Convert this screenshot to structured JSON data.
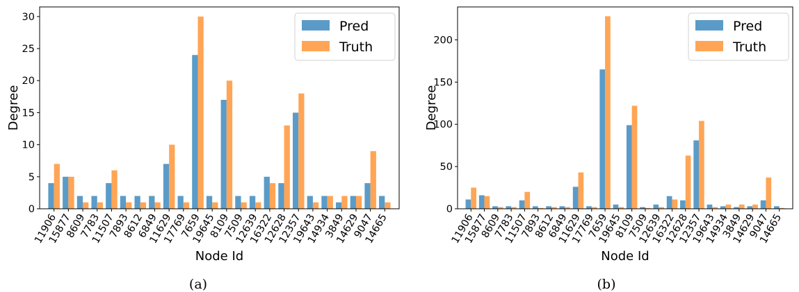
{
  "chart_data": [
    {
      "type": "bar",
      "caption": "(a)",
      "xlabel": "Node Id",
      "ylabel": "Degree",
      "ylim": [
        0,
        31.5
      ],
      "yticks": [
        0,
        5,
        10,
        15,
        20,
        25,
        30
      ],
      "grid": false,
      "legend_position": "top-right",
      "categories": [
        "11906",
        "15877",
        "8609",
        "7783",
        "11507",
        "7893",
        "8612",
        "6849",
        "11629",
        "17769",
        "7659",
        "19645",
        "8109",
        "7509",
        "12639",
        "16322",
        "12628",
        "12357",
        "19643",
        "14934",
        "3849",
        "14629",
        "9047",
        "14665"
      ],
      "series": [
        {
          "name": "Pred",
          "color": "#5b9bc8",
          "values": [
            4,
            5,
            2,
            2,
            4,
            2,
            2,
            2,
            7,
            2,
            24,
            2,
            17,
            2,
            2,
            5,
            4,
            15,
            2,
            2,
            1,
            2,
            4,
            2
          ]
        },
        {
          "name": "Truth",
          "color": "#ffa555",
          "values": [
            7,
            5,
            1,
            1,
            6,
            1,
            1,
            1,
            10,
            1,
            30,
            1,
            20,
            1,
            1,
            4,
            13,
            18,
            1,
            2,
            2,
            2,
            9,
            1
          ]
        }
      ]
    },
    {
      "type": "bar",
      "caption": "(b)",
      "xlabel": "Node Id",
      "ylabel": "Degree",
      "ylim": [
        0,
        239
      ],
      "yticks": [
        0,
        50,
        100,
        150,
        200
      ],
      "grid": false,
      "legend_position": "top-right",
      "categories": [
        "11906",
        "15877",
        "8609",
        "7783",
        "11507",
        "7893",
        "8612",
        "6849",
        "11629",
        "17769",
        "7659",
        "19645",
        "8109",
        "7509",
        "12639",
        "16322",
        "12628",
        "12357",
        "19643",
        "14934",
        "3849",
        "14629",
        "9047",
        "14665"
      ],
      "series": [
        {
          "name": "Pred",
          "color": "#5b9bc8",
          "values": [
            11,
            16,
            3,
            3,
            10,
            3,
            3,
            3,
            26,
            3,
            165,
            5,
            99,
            2,
            5,
            15,
            10,
            81,
            5,
            3,
            2,
            3,
            10,
            3
          ]
        },
        {
          "name": "Truth",
          "color": "#ffa555",
          "values": [
            25,
            15,
            2,
            2,
            20,
            1,
            2,
            2,
            43,
            2,
            228,
            2,
            122,
            1,
            2,
            11,
            63,
            104,
            2,
            5,
            5,
            5,
            37,
            1
          ]
        }
      ]
    }
  ]
}
